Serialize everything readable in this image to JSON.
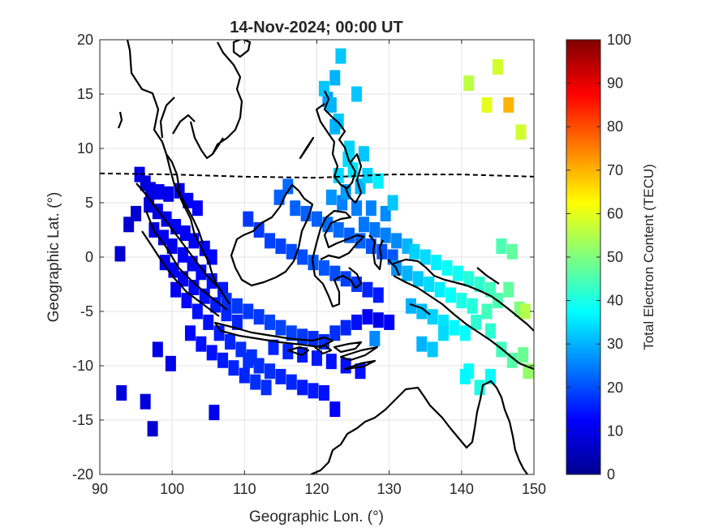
{
  "chart_data": {
    "type": "heatmap",
    "title": "14-Nov-2024; 00:00 UT",
    "xlabel": "Geographic Lon. (°)",
    "ylabel": "Geographic Lat. (°)",
    "xlim": [
      90,
      150
    ],
    "ylim": [
      -20,
      20
    ],
    "xticks": [
      90,
      100,
      110,
      120,
      130,
      140,
      150
    ],
    "yticks": [
      -20,
      -15,
      -10,
      -5,
      0,
      5,
      10,
      15,
      20
    ],
    "xtick_labels": [
      "90",
      "100",
      "110",
      "120",
      "130",
      "140",
      "150"
    ],
    "ytick_labels": [
      "-20",
      "-15",
      "-10",
      "-5",
      "0",
      "5",
      "10",
      "15",
      "20"
    ],
    "grid": true,
    "colorbar": {
      "label": "Total Electron Content (TECU)",
      "range": [
        0,
        100
      ],
      "ticks": [
        0,
        10,
        20,
        30,
        40,
        50,
        60,
        70,
        80,
        90,
        100
      ],
      "tick_labels": [
        "0",
        "10",
        "20",
        "30",
        "40",
        "50",
        "60",
        "70",
        "80",
        "90",
        "100"
      ],
      "colormap": "jet"
    },
    "magnetic_equator": {
      "style": "dashed",
      "points": [
        [
          90,
          7.7
        ],
        [
          100,
          7.6
        ],
        [
          110,
          7.4
        ],
        [
          120,
          7.3
        ],
        [
          130,
          7.6
        ],
        [
          140,
          7.6
        ],
        [
          150,
          7.4
        ]
      ]
    },
    "tec_points": [
      [
        95.5,
        7.6,
        10
      ],
      [
        96.3,
        6.8,
        9
      ],
      [
        97.0,
        6.2,
        10
      ],
      [
        98.2,
        6.0,
        11
      ],
      [
        99.5,
        5.8,
        10
      ],
      [
        101.0,
        6.1,
        11
      ],
      [
        102.2,
        5.2,
        12
      ],
      [
        103.5,
        4.5,
        12
      ],
      [
        96.8,
        4.8,
        9
      ],
      [
        98.0,
        4.2,
        10
      ],
      [
        99.2,
        3.5,
        11
      ],
      [
        100.5,
        2.8,
        11
      ],
      [
        101.8,
        2.2,
        12
      ],
      [
        103.0,
        1.5,
        12
      ],
      [
        104.5,
        0.8,
        13
      ],
      [
        105.5,
        0.0,
        13
      ],
      [
        97.5,
        2.5,
        10
      ],
      [
        98.8,
        1.8,
        11
      ],
      [
        100.0,
        1.0,
        11
      ],
      [
        101.5,
        0.2,
        12
      ],
      [
        102.8,
        -0.6,
        13
      ],
      [
        104.0,
        -1.4,
        13
      ],
      [
        105.5,
        -2.2,
        14
      ],
      [
        107.0,
        -3.0,
        15
      ],
      [
        99.0,
        -0.5,
        11
      ],
      [
        100.2,
        -1.2,
        12
      ],
      [
        101.5,
        -2.0,
        12
      ],
      [
        103.0,
        -2.8,
        13
      ],
      [
        104.5,
        -3.6,
        14
      ],
      [
        106.0,
        -4.4,
        15
      ],
      [
        107.5,
        -5.2,
        16
      ],
      [
        109.0,
        -6.0,
        16
      ],
      [
        100.5,
        -3.0,
        12
      ],
      [
        102.0,
        -4.0,
        13
      ],
      [
        103.5,
        -5.0,
        14
      ],
      [
        105.0,
        -6.0,
        14
      ],
      [
        106.5,
        -7.0,
        15
      ],
      [
        108.0,
        -7.8,
        16
      ],
      [
        109.5,
        -8.5,
        17
      ],
      [
        111.0,
        -9.2,
        17
      ],
      [
        102.5,
        -7.0,
        13
      ],
      [
        104.0,
        -8.0,
        14
      ],
      [
        105.5,
        -8.8,
        14
      ],
      [
        107.0,
        -9.5,
        15
      ],
      [
        108.5,
        -10.2,
        16
      ],
      [
        110.0,
        -10.9,
        16
      ],
      [
        111.5,
        -11.5,
        17
      ],
      [
        113.0,
        -12.0,
        17
      ],
      [
        107.5,
        -4.0,
        17
      ],
      [
        109.0,
        -4.5,
        18
      ],
      [
        110.5,
        -5.0,
        18
      ],
      [
        112.0,
        -5.5,
        18
      ],
      [
        113.5,
        -6.0,
        19
      ],
      [
        115.0,
        -6.5,
        19
      ],
      [
        116.5,
        -7.0,
        19
      ],
      [
        118.0,
        -7.3,
        18
      ],
      [
        110.5,
        -9.5,
        17
      ],
      [
        112.0,
        -10.0,
        17
      ],
      [
        113.5,
        -10.5,
        17
      ],
      [
        115.0,
        -11.0,
        16
      ],
      [
        116.5,
        -11.5,
        16
      ],
      [
        118.0,
        -12.0,
        15
      ],
      [
        119.5,
        -12.3,
        15
      ],
      [
        121.0,
        -12.5,
        14
      ],
      [
        114.0,
        -8.3,
        16
      ],
      [
        116.0,
        -8.7,
        16
      ],
      [
        118.0,
        -9.0,
        15
      ],
      [
        120.0,
        -9.3,
        15
      ],
      [
        122.0,
        -9.6,
        14
      ],
      [
        124.0,
        -10.0,
        14
      ],
      [
        126.0,
        -10.5,
        14
      ],
      [
        122.5,
        -14.0,
        12
      ],
      [
        119.5,
        -7.5,
        17
      ],
      [
        121.0,
        -7.8,
        17
      ],
      [
        122.5,
        -7.0,
        17
      ],
      [
        124.0,
        -6.5,
        16
      ],
      [
        125.5,
        -6.0,
        14
      ],
      [
        127.0,
        -5.5,
        12
      ],
      [
        128.5,
        -5.8,
        10
      ],
      [
        130.0,
        -6.0,
        12
      ],
      [
        95.0,
        4.0,
        8
      ],
      [
        94.0,
        3.0,
        8
      ],
      [
        92.8,
        0.3,
        8
      ],
      [
        98.0,
        -8.5,
        10
      ],
      [
        99.8,
        -9.8,
        10
      ],
      [
        93.0,
        -12.5,
        9
      ],
      [
        96.3,
        -13.3,
        9
      ],
      [
        97.3,
        -15.8,
        8
      ],
      [
        105.8,
        -14.3,
        11
      ],
      [
        110.5,
        3.5,
        18
      ],
      [
        112.0,
        2.5,
        18
      ],
      [
        113.5,
        1.5,
        19
      ],
      [
        115.0,
        1.0,
        19
      ],
      [
        116.5,
        0.5,
        20
      ],
      [
        118.0,
        0.0,
        20
      ],
      [
        119.5,
        -0.5,
        21
      ],
      [
        121.0,
        -1.0,
        21
      ],
      [
        122.5,
        -1.5,
        20
      ],
      [
        124.0,
        -2.0,
        19
      ],
      [
        125.5,
        -2.5,
        18
      ],
      [
        127.0,
        -3.0,
        16
      ],
      [
        128.5,
        -3.5,
        15
      ],
      [
        117.0,
        4.5,
        22
      ],
      [
        118.5,
        4.0,
        22
      ],
      [
        120.0,
        3.5,
        22
      ],
      [
        121.5,
        3.0,
        23
      ],
      [
        123.0,
        2.5,
        23
      ],
      [
        124.5,
        2.0,
        22
      ],
      [
        126.0,
        1.5,
        22
      ],
      [
        127.5,
        1.0,
        21
      ],
      [
        129.0,
        0.5,
        20
      ],
      [
        130.5,
        0.0,
        21
      ],
      [
        116.0,
        6.5,
        23
      ],
      [
        114.8,
        5.5,
        22
      ],
      [
        123.5,
        5.0,
        25
      ],
      [
        125.5,
        4.5,
        25
      ],
      [
        127.5,
        4.5,
        25
      ],
      [
        129.5,
        4.0,
        26
      ],
      [
        130.5,
        5.0,
        32
      ],
      [
        128.5,
        7.0,
        36
      ],
      [
        122.0,
        5.5,
        27
      ],
      [
        124.0,
        6.0,
        28
      ],
      [
        126.0,
        6.5,
        30
      ],
      [
        123.0,
        7.5,
        34
      ],
      [
        125.0,
        8.0,
        35
      ],
      [
        124.5,
        10.0,
        33
      ],
      [
        123.0,
        12.5,
        32
      ],
      [
        121.5,
        14.5,
        28
      ],
      [
        122.5,
        16.5,
        30
      ],
      [
        123.3,
        18.5,
        32
      ],
      [
        124.3,
        9.0,
        34
      ],
      [
        126.5,
        3.0,
        24
      ],
      [
        128.0,
        2.5,
        24
      ],
      [
        129.5,
        2.0,
        25
      ],
      [
        131.0,
        1.5,
        26
      ],
      [
        132.5,
        1.0,
        30
      ],
      [
        131.0,
        -1.0,
        27
      ],
      [
        132.5,
        -1.5,
        30
      ],
      [
        134.0,
        -2.0,
        32
      ],
      [
        135.5,
        -2.5,
        34
      ],
      [
        137.0,
        -3.0,
        36
      ],
      [
        138.5,
        -3.5,
        38
      ],
      [
        140.0,
        -4.0,
        40
      ],
      [
        141.5,
        -4.5,
        41
      ],
      [
        133.5,
        0.5,
        33
      ],
      [
        135.0,
        0.0,
        34
      ],
      [
        136.5,
        -0.5,
        36
      ],
      [
        138.0,
        -1.0,
        38
      ],
      [
        139.5,
        -1.5,
        39
      ],
      [
        141.0,
        -2.0,
        41
      ],
      [
        142.5,
        -2.5,
        42
      ],
      [
        144.0,
        -3.0,
        44
      ],
      [
        133.0,
        -4.5,
        30
      ],
      [
        134.5,
        -5.0,
        31
      ],
      [
        136.0,
        -5.5,
        33
      ],
      [
        137.5,
        -6.0,
        35
      ],
      [
        139.0,
        -6.5,
        37
      ],
      [
        140.5,
        -7.0,
        38
      ],
      [
        142.0,
        -6.0,
        42
      ],
      [
        143.5,
        -5.0,
        44
      ],
      [
        145.0,
        -4.0,
        45
      ],
      [
        146.5,
        -3.0,
        47
      ],
      [
        148.0,
        -4.8,
        50
      ],
      [
        148.8,
        -5.0,
        55
      ],
      [
        148.5,
        -9.0,
        48
      ],
      [
        149.2,
        -10.5,
        52
      ],
      [
        147.0,
        -9.5,
        46
      ],
      [
        145.5,
        -8.5,
        44
      ],
      [
        144.0,
        -6.8,
        42
      ],
      [
        134.5,
        -8.0,
        30
      ],
      [
        136.0,
        -8.5,
        32
      ],
      [
        137.5,
        -7.0,
        34
      ],
      [
        141.0,
        -10.5,
        38
      ],
      [
        142.5,
        -12.0,
        40
      ],
      [
        140.5,
        -11.0,
        37
      ],
      [
        145.5,
        1.0,
        45
      ],
      [
        147.0,
        0.5,
        47
      ],
      [
        141.0,
        16.0,
        56
      ],
      [
        145.0,
        17.5,
        58
      ],
      [
        143.5,
        14.0,
        60
      ],
      [
        146.5,
        14.0,
        70
      ],
      [
        148.2,
        11.5,
        58
      ],
      [
        144.0,
        -11.0,
        38
      ],
      [
        128.0,
        -7.5,
        26
      ],
      [
        121.0,
        15.5,
        32
      ],
      [
        122.0,
        14.0,
        30
      ],
      [
        125.5,
        15.0,
        32
      ],
      [
        122.5,
        12.0,
        30
      ],
      [
        126.5,
        9.5,
        32
      ],
      [
        127.0,
        7.5,
        33
      ]
    ]
  }
}
